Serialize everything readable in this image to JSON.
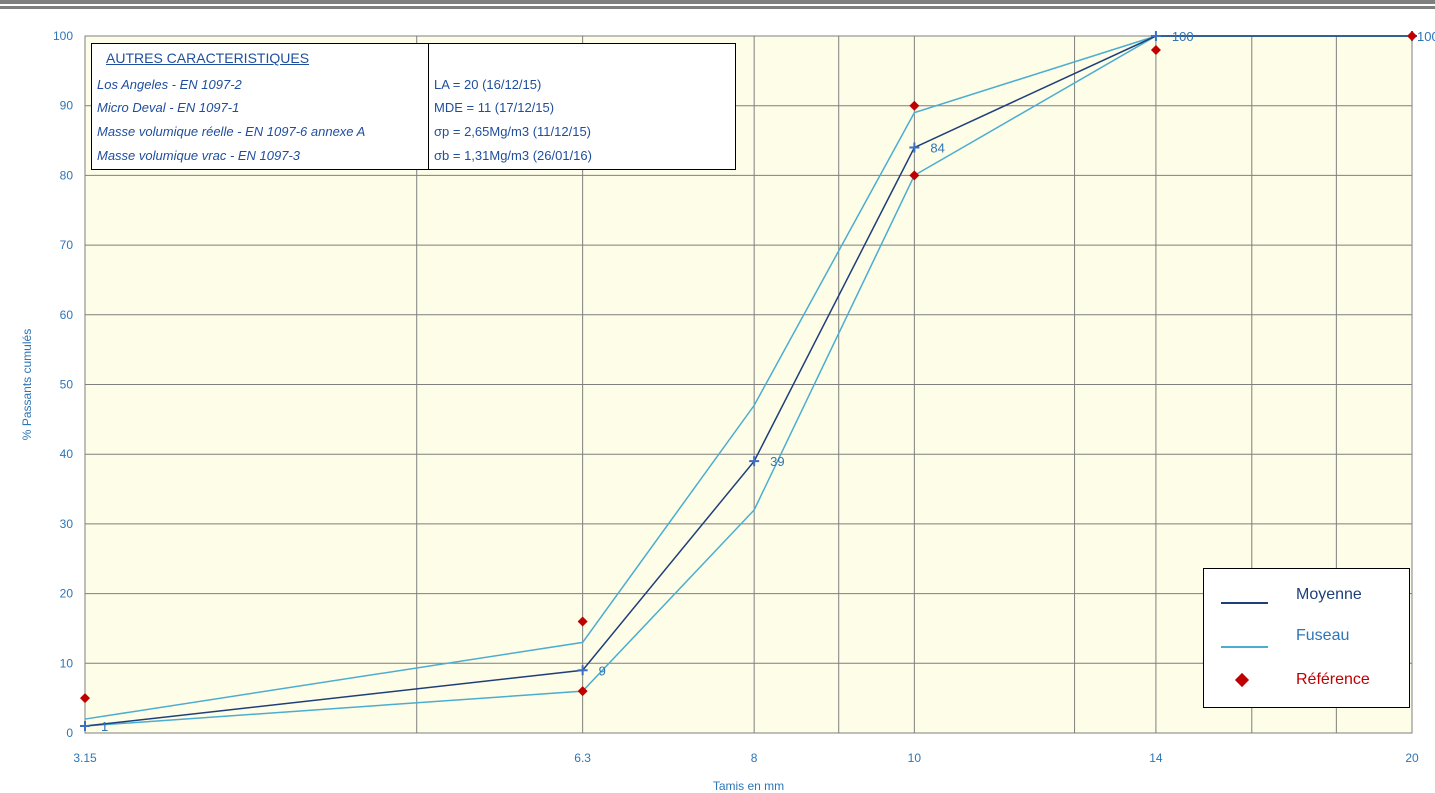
{
  "colors": {
    "moyenne": "#1f3f7a",
    "fuseau": "#4badd0",
    "reference": "#c00000",
    "plot_background": "#fefde8",
    "grid": "#7f7f7f",
    "axis_text": "#2e75b6"
  },
  "info_box": {
    "title": "AUTRES CARACTERISTIQUES",
    "rows": [
      {
        "label": "Los Angeles - EN 1097-2",
        "value": "LA = 20 (16/12/15)"
      },
      {
        "label": "Micro Deval - EN 1097-1",
        "value": "MDE = 11 (17/12/15)"
      },
      {
        "label": "Masse volumique réelle - EN 1097-6 annexe A",
        "value": "σp = 2,65Mg/m3 (11/12/15)"
      },
      {
        "label": "Masse volumique vrac - EN 1097-3",
        "value": "σb = 1,31Mg/m3 (26/01/16)"
      }
    ]
  },
  "legend": {
    "items": [
      {
        "label": "Moyenne",
        "symbol": "line"
      },
      {
        "label": "Fuseau",
        "symbol": "line"
      },
      {
        "label": "Référence",
        "symbol": "diamond"
      }
    ]
  },
  "chart_data": {
    "type": "line",
    "x_scale": "log",
    "xlabel": "Tamis en mm",
    "ylabel": "% Passants cumulés",
    "xlim": [
      3.15,
      20
    ],
    "ylim": [
      0,
      100
    ],
    "x_tick_labels": [
      "3.15",
      "6.3",
      "8",
      "10",
      "14",
      "20"
    ],
    "x_ticks": [
      3.15,
      6.3,
      8,
      10,
      14,
      20
    ],
    "x_gridlines": [
      3.15,
      5,
      6.3,
      8,
      9,
      10,
      12.5,
      14,
      16,
      18,
      20
    ],
    "y_ticks": [
      0,
      10,
      20,
      30,
      40,
      50,
      60,
      70,
      80,
      90,
      100
    ],
    "grid": true,
    "legend_position": "bottom-right",
    "series": [
      {
        "name": "Moyenne",
        "style": "line-cross",
        "x": [
          3.15,
          6.3,
          8,
          10,
          14,
          20
        ],
        "y": [
          1,
          9,
          39,
          84,
          100,
          100
        ],
        "data_labels": [
          "1",
          "9",
          "39",
          "84",
          "100",
          ""
        ]
      },
      {
        "name": "Fuseau",
        "style": "line",
        "x": [
          3.15,
          6.3,
          8,
          10,
          14,
          20
        ],
        "y": [
          2,
          13,
          47,
          89,
          100,
          100
        ]
      },
      {
        "name": "Fuseau",
        "style": "line",
        "x": [
          3.15,
          6.3,
          8,
          10,
          14,
          20
        ],
        "y": [
          1,
          6,
          32,
          80,
          100,
          100
        ]
      },
      {
        "name": "Référence",
        "style": "marker-diamond",
        "x": [
          3.15,
          6.3,
          6.3,
          10,
          10,
          14,
          20
        ],
        "y": [
          5,
          16,
          6,
          90,
          80,
          98,
          100
        ]
      }
    ],
    "extra_labels": [
      "100"
    ]
  }
}
